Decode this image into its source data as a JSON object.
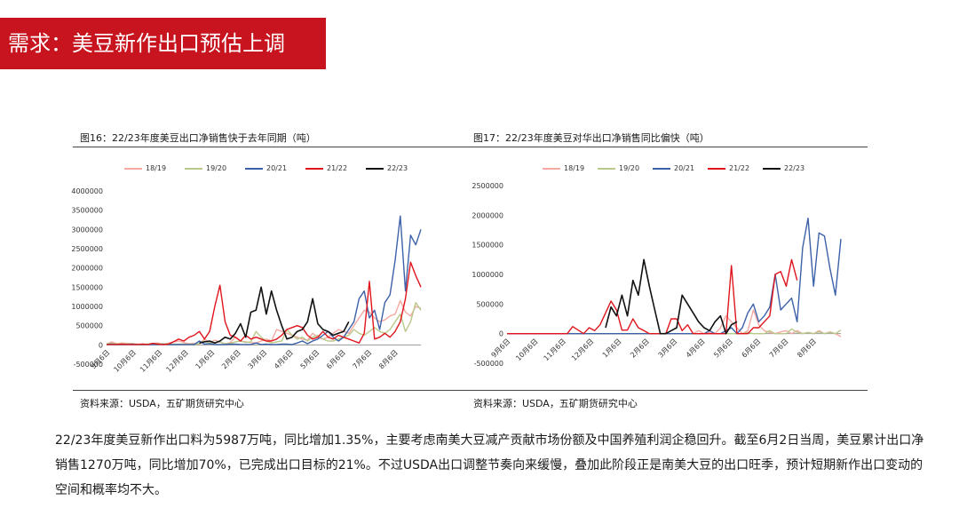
{
  "header": {
    "title": "需求：美豆新作出口预估上调"
  },
  "footer_text": "22/23年度美豆新作出口料为5987万吨，同比增加1.35%，主要考虑南美大豆减产贡献市场份额及中国养殖利润企稳回升。截至6月2日当周，美豆累计出口净销售1270万吨，同比增加70%，已完成出口目标的21%。不过USDA出口调整节奏向来缓慢，叠加此阶段正是南美大豆的出口旺季，预计短期新作出口变动的空间和概率均不大。",
  "colors": {
    "title_bar": "#c8141e"
  },
  "chart_data": [
    {
      "type": "line",
      "title": "图16：22/23年度美豆出口净销售快于去年同期（吨）",
      "source": "资料来源：USDA，五矿期货研究中心",
      "xlabel": "",
      "ylabel": "",
      "ylim": [
        -500000,
        4000000
      ],
      "yticks": [
        -500000,
        0,
        500000,
        1000000,
        1500000,
        2000000,
        2500000,
        3000000,
        3500000,
        4000000
      ],
      "ytick_labels": [
        "-500000",
        "0",
        "500000",
        "1000000",
        "1500000",
        "2000000",
        "2500000",
        "3000000",
        "3500000",
        "4000000"
      ],
      "xtick_labels": [
        "9月6日",
        "10月6日",
        "11月6日",
        "12月6日",
        "1月6日",
        "2月6日",
        "3月6日",
        "4月6日",
        "5月6日",
        "6月6日",
        "7月6日",
        "8月6日"
      ],
      "grid": false,
      "legend_position": "top",
      "series": [
        {
          "name": "18/19",
          "color": "#f4a9a2",
          "values": [
            20000,
            80000,
            30000,
            50000,
            40000,
            30000,
            20000,
            20000,
            10000,
            30000,
            50000,
            20000,
            40000,
            80000,
            100000,
            60000,
            30000,
            40000,
            20000,
            150000,
            60000,
            120000,
            80000,
            20000,
            60000,
            200000,
            100000,
            80000,
            60000,
            50000,
            100000,
            150000,
            100000,
            400000,
            350000,
            300000,
            250000,
            200000,
            150000,
            120000,
            300000,
            200000,
            150000,
            200000,
            300000,
            400000,
            350000,
            300000,
            500000,
            700000,
            900000,
            850000,
            700000,
            600000,
            650000,
            750000,
            800000,
            1150000,
            850000,
            750000,
            1000000,
            950000
          ]
        },
        {
          "name": "19/20",
          "color": "#b9c98b",
          "values": [
            30000,
            40000,
            20000,
            30000,
            20000,
            30000,
            10000,
            20000,
            20000,
            40000,
            30000,
            20000,
            30000,
            20000,
            20000,
            20000,
            20000,
            20000,
            30000,
            100000,
            50000,
            60000,
            80000,
            30000,
            40000,
            80000,
            100000,
            60000,
            80000,
            350000,
            200000,
            100000,
            50000,
            80000,
            100000,
            400000,
            250000,
            150000,
            200000,
            100000,
            200000,
            250000,
            150000,
            100000,
            100000,
            150000,
            200000,
            250000,
            400000,
            300000,
            250000,
            350000,
            450000,
            350000,
            300000,
            400000,
            600000,
            800000,
            350000,
            600000,
            1100000,
            900000
          ]
        },
        {
          "name": "20/21",
          "color": "#3d61a8",
          "values": [
            10000,
            20000,
            10000,
            10000,
            10000,
            20000,
            10000,
            10000,
            10000,
            10000,
            10000,
            20000,
            10000,
            10000,
            10000,
            10000,
            10000,
            10000,
            100000,
            20000,
            30000,
            10000,
            10000,
            10000,
            20000,
            20000,
            10000,
            10000,
            10000,
            50000,
            10000,
            20000,
            10000,
            10000,
            20000,
            20000,
            10000,
            50000,
            100000,
            30000,
            100000,
            150000,
            250000,
            350000,
            200000,
            100000,
            200000,
            400000,
            600000,
            1200000,
            1400000,
            700000,
            900000,
            400000,
            1100000,
            1300000,
            2200000,
            3350000,
            1400000,
            2850000,
            2600000,
            3000000
          ]
        },
        {
          "name": "21/22",
          "color": "#e0141c",
          "values": [
            10000,
            10000,
            10000,
            20000,
            10000,
            10000,
            10000,
            20000,
            10000,
            40000,
            20000,
            10000,
            20000,
            80000,
            150000,
            100000,
            200000,
            250000,
            350000,
            150000,
            350000,
            1000000,
            1550000,
            600000,
            250000,
            200000,
            100000,
            250000,
            150000,
            200000,
            150000,
            100000,
            100000,
            150000,
            250000,
            400000,
            450000,
            500000,
            450000,
            250000,
            150000,
            200000,
            350000,
            200000,
            150000,
            250000,
            200000,
            150000,
            100000,
            50000,
            300000,
            1650000,
            150000,
            200000,
            300000,
            200000,
            350000,
            600000,
            1200000,
            2150000,
            1800000,
            1500000
          ]
        },
        {
          "name": "22/23",
          "color": "#111111",
          "values": [
            null,
            null,
            null,
            null,
            null,
            null,
            null,
            null,
            null,
            null,
            null,
            null,
            null,
            null,
            null,
            null,
            null,
            null,
            50000,
            80000,
            100000,
            50000,
            100000,
            200000,
            150000,
            300000,
            550000,
            200000,
            850000,
            900000,
            1500000,
            800000,
            1400000,
            900000,
            500000,
            150000,
            200000,
            350000,
            400000,
            600000,
            1200000,
            550000,
            400000,
            350000,
            250000,
            300000,
            350000,
            600000
          ]
        }
      ]
    },
    {
      "type": "line",
      "title": "图17：22/23年度美豆对华出口净销售同比偏快（吨）",
      "source": "资料来源：USDA，五矿期货研究中心",
      "xlabel": "",
      "ylabel": "",
      "ylim": [
        -500000,
        2500000
      ],
      "yticks": [
        -500000,
        0,
        500000,
        1000000,
        1500000,
        2000000,
        2500000
      ],
      "ytick_labels": [
        "-500000",
        "0",
        "500000",
        "1000000",
        "1500000",
        "2000000",
        "2500000"
      ],
      "xtick_labels": [
        "9月6日",
        "10月6日",
        "11月6日",
        "12月6日",
        "1月6日",
        "2月6日",
        "3月6日",
        "4月6日",
        "5月6日",
        "6月6日",
        "7月6日",
        "8月6日"
      ],
      "grid": false,
      "legend_position": "top",
      "series": [
        {
          "name": "18/19",
          "color": "#f4a9a2",
          "values": [
            0,
            0,
            0,
            0,
            0,
            0,
            0,
            0,
            0,
            0,
            0,
            0,
            0,
            0,
            0,
            0,
            0,
            0,
            0,
            0,
            0,
            0,
            0,
            0,
            0,
            0,
            0,
            0,
            0,
            0,
            0,
            0,
            0,
            0,
            0,
            50000,
            0,
            20000,
            0,
            100000,
            300000,
            200000,
            100000,
            0,
            50000,
            400000,
            150000,
            50000,
            20000,
            0,
            30000,
            50000,
            0,
            50000,
            0,
            20000,
            0,
            50000,
            0,
            30000,
            0,
            -50000
          ]
        },
        {
          "name": "19/20",
          "color": "#b9c98b",
          "values": [
            0,
            0,
            0,
            0,
            0,
            0,
            0,
            0,
            0,
            0,
            0,
            0,
            0,
            0,
            0,
            0,
            0,
            0,
            0,
            0,
            0,
            0,
            0,
            0,
            0,
            0,
            0,
            0,
            0,
            0,
            0,
            0,
            0,
            0,
            0,
            0,
            0,
            0,
            0,
            0,
            0,
            0,
            0,
            0,
            20000,
            0,
            0,
            0,
            50000,
            0,
            0,
            0,
            80000,
            20000,
            0,
            20000,
            0,
            30000,
            0,
            20000,
            0,
            60000
          ]
        },
        {
          "name": "20/21",
          "color": "#3d61a8",
          "values": [
            0,
            0,
            0,
            0,
            0,
            0,
            0,
            0,
            0,
            0,
            0,
            0,
            0,
            0,
            0,
            0,
            0,
            0,
            0,
            0,
            0,
            0,
            0,
            0,
            0,
            0,
            0,
            0,
            0,
            0,
            0,
            0,
            0,
            0,
            0,
            0,
            0,
            50000,
            0,
            0,
            50000,
            100000,
            0,
            100000,
            350000,
            500000,
            200000,
            300000,
            450000,
            1000000,
            400000,
            500000,
            600000,
            200000,
            1450000,
            1950000,
            800000,
            1700000,
            1650000,
            1100000,
            650000,
            1600000
          ]
        },
        {
          "name": "21/22",
          "color": "#e0141c",
          "values": [
            0,
            0,
            0,
            0,
            0,
            0,
            0,
            0,
            0,
            0,
            0,
            0,
            120000,
            60000,
            0,
            100000,
            50000,
            150000,
            350000,
            550000,
            400000,
            60000,
            60000,
            250000,
            100000,
            50000,
            0,
            0,
            0,
            0,
            250000,
            250000,
            50000,
            150000,
            0,
            0,
            0,
            0,
            0,
            0,
            0,
            1150000,
            0,
            0,
            0,
            100000,
            100000,
            200000,
            300000,
            1000000,
            1050000,
            800000,
            1250000,
            900000
          ]
        },
        {
          "name": "22/23",
          "color": "#111111",
          "values": [
            null,
            null,
            null,
            null,
            null,
            null,
            null,
            null,
            null,
            null,
            null,
            null,
            null,
            null,
            null,
            null,
            null,
            null,
            100000,
            450000,
            300000,
            650000,
            300000,
            900000,
            650000,
            1250000,
            800000,
            400000,
            0,
            0,
            50000,
            100000,
            650000,
            500000,
            350000,
            200000,
            100000,
            50000,
            200000,
            300000,
            0,
            150000,
            200000
          ]
        }
      ]
    }
  ]
}
